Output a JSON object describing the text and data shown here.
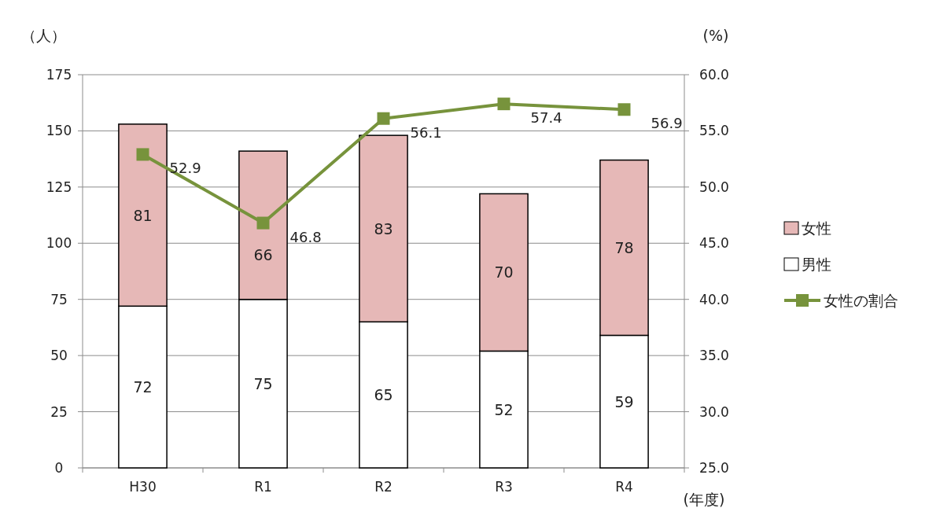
{
  "chart_data": {
    "type": "bar",
    "stacked": true,
    "categories": [
      "H30",
      "R1",
      "R2",
      "R3",
      "R4"
    ],
    "series": [
      {
        "name": "男性",
        "color": "#ffffff",
        "values": [
          72,
          75,
          65,
          52,
          59
        ]
      },
      {
        "name": "女性",
        "color": "#e6b8b7",
        "values": [
          81,
          66,
          83,
          70,
          78
        ]
      },
      {
        "name": "女性の割合",
        "type": "line",
        "axis": "y2",
        "color": "#77933c",
        "values": [
          52.9,
          46.8,
          56.1,
          57.4,
          56.9
        ]
      }
    ],
    "ylabel": "（人）",
    "y2label": "(%)",
    "xlabel": "(年度)",
    "ylim": [
      0,
      175
    ],
    "yticks": [
      0,
      25,
      50,
      75,
      100,
      125,
      150,
      175
    ],
    "y2lim": [
      25,
      60
    ],
    "y2ticks": [
      {
        "value": 25,
        "label": "25.0"
      },
      {
        "value": 30,
        "label": "30.0"
      },
      {
        "value": 35,
        "label": "35.0"
      },
      {
        "value": 40,
        "label": "40.0"
      },
      {
        "value": 45,
        "label": "45.0"
      },
      {
        "value": 50,
        "label": "50.0"
      },
      {
        "value": 55,
        "label": "55.0"
      },
      {
        "value": 60,
        "label": "60.0"
      }
    ],
    "grid": "y",
    "legend": "right",
    "marker": "square",
    "data_labels": true
  }
}
